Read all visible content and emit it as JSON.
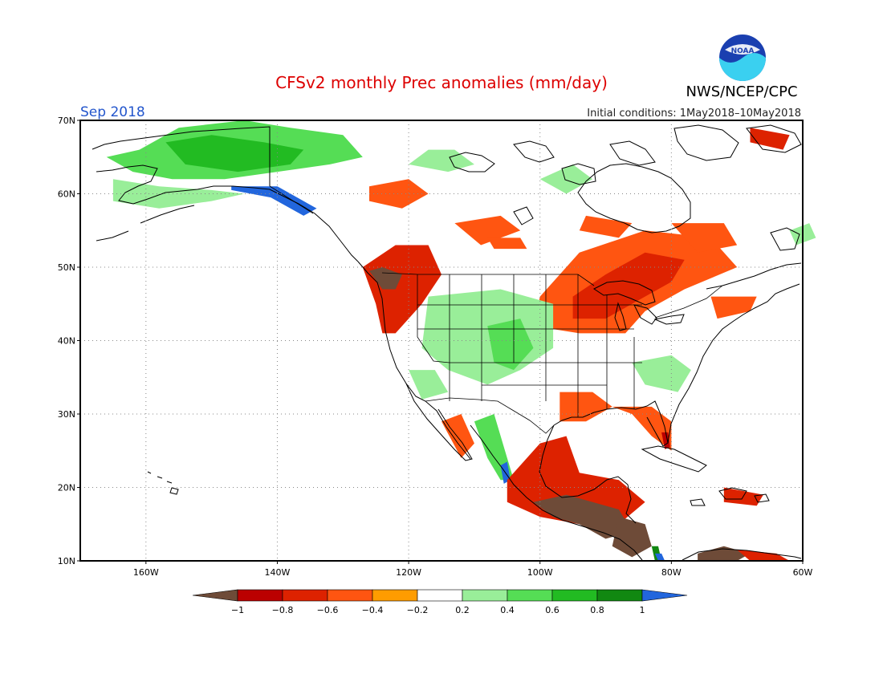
{
  "title": "CFSv2 monthly Prec anomalies (mm/day)",
  "valid_month": "Sep 2018",
  "agency": "NWS/NCEP/CPC",
  "logo_text": "NOAA",
  "initial_conditions": "Initial conditions: 1May2018–10May2018",
  "map": {
    "lon_range": [
      -170,
      -60
    ],
    "lat_range": [
      10,
      70
    ],
    "lat_ticks": [
      {
        "value": 70,
        "label": "70N"
      },
      {
        "value": 60,
        "label": "60N"
      },
      {
        "value": 50,
        "label": "50N"
      },
      {
        "value": 40,
        "label": "40N"
      },
      {
        "value": 30,
        "label": "30N"
      },
      {
        "value": 20,
        "label": "20N"
      },
      {
        "value": 10,
        "label": "10N"
      }
    ],
    "lon_ticks": [
      {
        "value": -160,
        "label": "160W"
      },
      {
        "value": -140,
        "label": "140W"
      },
      {
        "value": -120,
        "label": "120W"
      },
      {
        "value": -100,
        "label": "100W"
      },
      {
        "value": -80,
        "label": "80W"
      },
      {
        "value": -60,
        "label": "60W"
      }
    ],
    "gridlines": "dotted",
    "regions": [
      {
        "name": "alaska-wet",
        "class": 2,
        "pts": [
          [
            -161,
            66
          ],
          [
            -155,
            69
          ],
          [
            -145,
            70
          ],
          [
            -138,
            69
          ],
          [
            -130,
            68
          ],
          [
            -127,
            65
          ],
          [
            -132,
            64
          ],
          [
            -140,
            63
          ],
          [
            -148,
            62
          ],
          [
            -156,
            62
          ],
          [
            -162,
            63
          ],
          [
            -166,
            65
          ]
        ]
      },
      {
        "name": "alaska-wet-core",
        "class": 3,
        "pts": [
          [
            -157,
            67
          ],
          [
            -150,
            68
          ],
          [
            -142,
            67
          ],
          [
            -136,
            66
          ],
          [
            -138,
            64
          ],
          [
            -146,
            63
          ],
          [
            -154,
            64
          ]
        ]
      },
      {
        "name": "alaska-south-wet",
        "class": 1,
        "pts": [
          [
            -165,
            62
          ],
          [
            -158,
            61
          ],
          [
            -150,
            60.5
          ],
          [
            -145,
            60
          ],
          [
            -150,
            59
          ],
          [
            -158,
            58
          ],
          [
            -165,
            59
          ]
        ]
      },
      {
        "name": "canada-arctic-wet",
        "class": 1,
        "pts": [
          [
            -120,
            64
          ],
          [
            -117,
            66
          ],
          [
            -113,
            66
          ],
          [
            -110,
            64
          ],
          [
            -114,
            63
          ]
        ]
      },
      {
        "name": "hudson-wet",
        "class": 1,
        "pts": [
          [
            -100,
            62
          ],
          [
            -95,
            64
          ],
          [
            -92,
            62
          ],
          [
            -96,
            60
          ]
        ]
      },
      {
        "name": "canada-dry-1",
        "class": -2,
        "pts": [
          [
            -126,
            61
          ],
          [
            -120,
            62
          ],
          [
            -117,
            60
          ],
          [
            -121,
            58
          ],
          [
            -126,
            59
          ]
        ]
      },
      {
        "name": "canada-dry-2",
        "class": -2,
        "pts": [
          [
            -113,
            56
          ],
          [
            -106,
            57
          ],
          [
            -103,
            55
          ],
          [
            -109,
            53
          ]
        ]
      },
      {
        "name": "canada-dry-3",
        "class": -2,
        "pts": [
          [
            -93,
            57
          ],
          [
            -86,
            56
          ],
          [
            -88,
            54
          ],
          [
            -94,
            55
          ]
        ]
      },
      {
        "name": "canada-dry-4",
        "class": -2,
        "pts": [
          [
            -108,
            54
          ],
          [
            -103,
            54
          ],
          [
            -102,
            52.5
          ],
          [
            -107,
            52.5
          ]
        ]
      },
      {
        "name": "pnw-dry",
        "class": -3,
        "pts": [
          [
            -127,
            50
          ],
          [
            -122,
            53
          ],
          [
            -117,
            53
          ],
          [
            -115,
            49
          ],
          [
            -118,
            45
          ],
          [
            -122,
            41
          ],
          [
            -124,
            41
          ],
          [
            -125,
            45
          ]
        ]
      },
      {
        "name": "pnw-very-dry",
        "class": -5,
        "pts": [
          [
            -126,
            49.5
          ],
          [
            -124,
            50
          ],
          [
            -121,
            49
          ],
          [
            -122,
            47
          ],
          [
            -124,
            47
          ]
        ]
      },
      {
        "name": "greatlakes-dry",
        "class": -2,
        "pts": [
          [
            -100,
            46
          ],
          [
            -94,
            52
          ],
          [
            -84,
            55
          ],
          [
            -74,
            54
          ],
          [
            -70,
            50
          ],
          [
            -78,
            47
          ],
          [
            -84,
            44
          ],
          [
            -87,
            41
          ],
          [
            -94,
            41
          ],
          [
            -101,
            42
          ]
        ]
      },
      {
        "name": "greatlakes-core",
        "class": -3,
        "pts": [
          [
            -95,
            46
          ],
          [
            -90,
            49
          ],
          [
            -84,
            52
          ],
          [
            -78,
            51
          ],
          [
            -80,
            48
          ],
          [
            -86,
            45
          ],
          [
            -90,
            43
          ],
          [
            -95,
            43
          ]
        ]
      },
      {
        "name": "quebec-dry",
        "class": -2,
        "pts": [
          [
            -80,
            56
          ],
          [
            -72,
            56
          ],
          [
            -70,
            53
          ],
          [
            -76,
            52
          ]
        ]
      },
      {
        "name": "newengland-dry",
        "class": -2,
        "pts": [
          [
            -74,
            46
          ],
          [
            -67,
            46
          ],
          [
            -68,
            44
          ],
          [
            -73,
            43
          ]
        ]
      },
      {
        "name": "greenland-edge-dry",
        "class": -3,
        "pts": [
          [
            -68,
            69
          ],
          [
            -62,
            68
          ],
          [
            -63,
            66
          ],
          [
            -68,
            67
          ]
        ]
      },
      {
        "name": "rockies-wet",
        "class": 1,
        "pts": [
          [
            -117,
            46
          ],
          [
            -106,
            47
          ],
          [
            -98,
            45
          ],
          [
            -98,
            39
          ],
          [
            -103,
            36
          ],
          [
            -108,
            34
          ],
          [
            -114,
            36
          ],
          [
            -118,
            39
          ]
        ]
      },
      {
        "name": "rockies-wet-core",
        "class": 2,
        "pts": [
          [
            -108,
            42
          ],
          [
            -103,
            43
          ],
          [
            -101,
            39
          ],
          [
            -104,
            36
          ],
          [
            -107,
            37
          ]
        ]
      },
      {
        "name": "southeast-wet",
        "class": 1,
        "pts": [
          [
            -86,
            37
          ],
          [
            -80,
            38
          ],
          [
            -77,
            36
          ],
          [
            -79,
            33
          ],
          [
            -84,
            34
          ]
        ]
      },
      {
        "name": "southwest-wet",
        "class": 1,
        "pts": [
          [
            -120,
            36
          ],
          [
            -116,
            36
          ],
          [
            -114,
            33
          ],
          [
            -118,
            32
          ]
        ]
      },
      {
        "name": "texas-dry",
        "class": -2,
        "pts": [
          [
            -97,
            33
          ],
          [
            -92,
            33
          ],
          [
            -89,
            31
          ],
          [
            -93,
            29
          ],
          [
            -97,
            29
          ]
        ]
      },
      {
        "name": "gulfcoast-dry",
        "class": -2,
        "pts": [
          [
            -89,
            31
          ],
          [
            -83,
            31
          ],
          [
            -80,
            29
          ],
          [
            -80,
            25
          ],
          [
            -83,
            27
          ],
          [
            -86,
            30
          ]
        ]
      },
      {
        "name": "florida-dry",
        "class": -4,
        "pts": [
          [
            -81.5,
            27.5
          ],
          [
            -80.5,
            27.5
          ],
          [
            -80.2,
            25.5
          ],
          [
            -81,
            25.2
          ]
        ]
      },
      {
        "name": "mexico-west-wet",
        "class": 2,
        "pts": [
          [
            -110,
            29
          ],
          [
            -107,
            30
          ],
          [
            -105,
            24
          ],
          [
            -104,
            21
          ],
          [
            -106,
            21
          ],
          [
            -108,
            24
          ]
        ]
      },
      {
        "name": "mexico-coast-very-wet",
        "class": 5,
        "pts": [
          [
            -106,
            23
          ],
          [
            -105,
            23.5
          ],
          [
            -104.5,
            21
          ],
          [
            -105.5,
            20.5
          ]
        ]
      },
      {
        "name": "mexico-dry",
        "class": -3,
        "pts": [
          [
            -105,
            21
          ],
          [
            -100,
            26
          ],
          [
            -96,
            27
          ],
          [
            -94,
            22
          ],
          [
            -88,
            21
          ],
          [
            -84,
            18
          ],
          [
            -88,
            15
          ],
          [
            -94,
            15
          ],
          [
            -100,
            16
          ],
          [
            -105,
            18
          ]
        ]
      },
      {
        "name": "mexico-very-dry",
        "class": -5,
        "pts": [
          [
            -101,
            18
          ],
          [
            -96,
            19
          ],
          [
            -92,
            18
          ],
          [
            -88,
            17
          ],
          [
            -86,
            14
          ],
          [
            -90,
            13
          ],
          [
            -94,
            15
          ],
          [
            -98,
            16
          ]
        ]
      },
      {
        "name": "baja-dry",
        "class": -2,
        "pts": [
          [
            -115,
            29
          ],
          [
            -112,
            30
          ],
          [
            -110,
            26
          ],
          [
            -112,
            24
          ]
        ]
      },
      {
        "name": "centralamerica-very-dry",
        "class": -5,
        "pts": [
          [
            -88,
            16
          ],
          [
            -84,
            15
          ],
          [
            -83,
            12
          ],
          [
            -86,
            10.5
          ],
          [
            -89,
            12
          ]
        ]
      },
      {
        "name": "caribbean-south-very-dry",
        "class": -5,
        "pts": [
          [
            -76,
            11
          ],
          [
            -72,
            12
          ],
          [
            -68,
            11
          ],
          [
            -70,
            10
          ],
          [
            -76,
            10
          ]
        ]
      },
      {
        "name": "caribbean-south-dry",
        "class": -3,
        "pts": [
          [
            -70,
            11.5
          ],
          [
            -64,
            11
          ],
          [
            -62,
            10
          ],
          [
            -68,
            10
          ]
        ]
      },
      {
        "name": "puertorico-dry",
        "class": -3,
        "pts": [
          [
            -72,
            20
          ],
          [
            -66,
            19
          ],
          [
            -67,
            17.5
          ],
          [
            -72,
            18
          ]
        ]
      },
      {
        "name": "panama-wet",
        "class": 4,
        "pts": [
          [
            -83,
            12
          ],
          [
            -82,
            12
          ],
          [
            -81.5,
            10
          ],
          [
            -82.5,
            10
          ]
        ]
      },
      {
        "name": "panama-very-wet",
        "class": 5,
        "pts": [
          [
            -82.5,
            11
          ],
          [
            -81.5,
            11
          ],
          [
            -81,
            10
          ],
          [
            -82,
            10
          ]
        ]
      },
      {
        "name": "alaska-coast-very-wet",
        "class": 5,
        "pts": [
          [
            -147,
            61
          ],
          [
            -140,
            61
          ],
          [
            -134,
            58
          ],
          [
            -136,
            57
          ],
          [
            -141,
            59.5
          ],
          [
            -147,
            60.5
          ]
        ]
      },
      {
        "name": "labrador-wet",
        "class": 1,
        "pts": [
          [
            -62,
            55
          ],
          [
            -59,
            56
          ],
          [
            -58,
            54
          ],
          [
            -61,
            53
          ]
        ]
      }
    ]
  },
  "colorbar": {
    "labels": [
      "−1",
      "−0.8",
      "−0.6",
      "−0.4",
      "−0.2",
      "0.2",
      "0.4",
      "0.6",
      "0.8",
      "1"
    ],
    "colors": [
      "#6e4b38",
      "#bb0000",
      "#dd2200",
      "#ff5511",
      "#ff9c00",
      "#ffffff",
      "#99ee99",
      "#55dd55",
      "#22bb22",
      "#118811",
      "#2266dd"
    ]
  }
}
